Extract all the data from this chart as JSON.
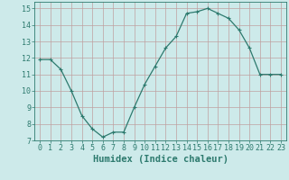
{
  "x": [
    0,
    1,
    2,
    3,
    4,
    5,
    6,
    7,
    8,
    9,
    10,
    11,
    12,
    13,
    14,
    15,
    16,
    17,
    18,
    19,
    20,
    21,
    22,
    23
  ],
  "y": [
    11.9,
    11.9,
    11.3,
    10.0,
    8.5,
    7.7,
    7.2,
    7.5,
    7.5,
    9.0,
    10.4,
    11.5,
    12.6,
    13.3,
    14.7,
    14.8,
    15.0,
    14.7,
    14.4,
    13.7,
    12.6,
    11.0,
    11.0,
    11.0
  ],
  "line_color": "#2d7a6e",
  "marker": "+",
  "markersize": 3,
  "linewidth": 0.9,
  "xlabel": "Humidex (Indice chaleur)",
  "ylabel": "",
  "xlim": [
    -0.5,
    23.5
  ],
  "ylim": [
    7,
    15.4
  ],
  "yticks": [
    7,
    8,
    9,
    10,
    11,
    12,
    13,
    14,
    15
  ],
  "xticks": [
    0,
    1,
    2,
    3,
    4,
    5,
    6,
    7,
    8,
    9,
    10,
    11,
    12,
    13,
    14,
    15,
    16,
    17,
    18,
    19,
    20,
    21,
    22,
    23
  ],
  "background_color": "#cdeaea",
  "grid_color": "#c0a0a0",
  "tick_color": "#2d7a6e",
  "label_color": "#2d7a6e",
  "tick_fontsize": 6,
  "xlabel_fontsize": 7.5
}
